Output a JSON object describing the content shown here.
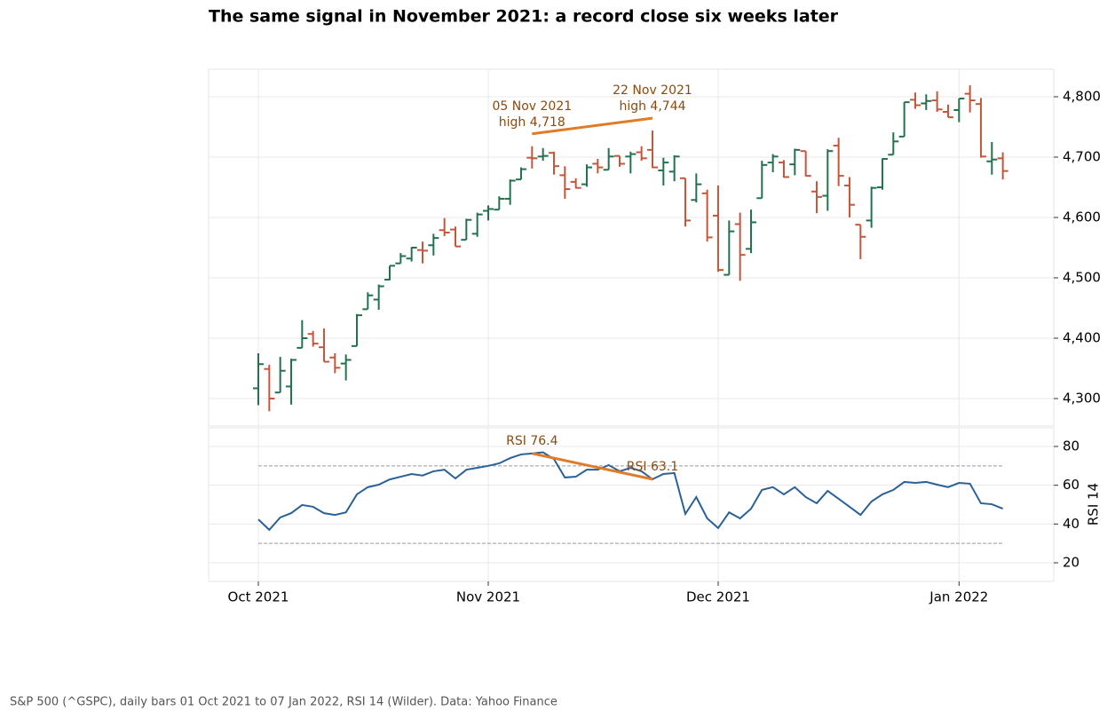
{
  "chart_data": [
    {
      "type": "ohlc",
      "title": "The same signal in November 2021: a record close six weeks later",
      "categories": [
        "Oct 2021",
        null,
        null,
        null,
        null,
        null,
        null,
        null,
        null,
        null,
        null,
        null,
        null,
        null,
        null,
        null,
        null,
        null,
        null,
        null,
        null,
        "Nov 2021",
        null,
        null,
        null,
        null,
        null,
        null,
        null,
        null,
        null,
        null,
        null,
        null,
        null,
        null,
        null,
        null,
        null,
        null,
        null,
        null,
        "Dec 2021",
        null,
        null,
        null,
        null,
        null,
        null,
        null,
        null,
        null,
        null,
        null,
        null,
        null,
        null,
        null,
        null,
        null,
        null,
        null,
        null,
        null,
        "Jan 2022",
        null,
        null,
        null,
        null
      ],
      "open": [
        4317,
        4349,
        4310,
        4320,
        4384,
        4407,
        4385,
        4368,
        4358,
        4387,
        4448,
        4464,
        4497,
        4524,
        4532,
        4546,
        4554,
        4579,
        4580,
        4563,
        4573,
        4611,
        4613,
        4631,
        4663,
        4699,
        4701,
        4707,
        4670,
        4659,
        4655,
        4689,
        4679,
        4702,
        4701,
        4708,
        4712,
        4678,
        4676,
        4665,
        4629,
        4640,
        4603,
        4505,
        4589,
        4548,
        4632,
        4691,
        4691,
        4688,
        4710,
        4643,
        4636,
        4719,
        4653,
        4588,
        4595,
        4650,
        4704,
        4734,
        4795,
        4789,
        4794,
        4775,
        4778,
        4805,
        4788,
        4693,
        4698
      ],
      "high": [
        4375,
        4356,
        4369,
        4366,
        4430,
        4412,
        4416,
        4375,
        4373,
        4440,
        4476,
        4489,
        4520,
        4541,
        4551,
        4560,
        4573,
        4599,
        4585,
        4598,
        4608,
        4620,
        4635,
        4663,
        4683,
        4718,
        4715,
        4709,
        4685,
        4665,
        4688,
        4697,
        4715,
        4702,
        4709,
        4718,
        4744,
        4699,
        4703,
        4665,
        4673,
        4646,
        4653,
        4595,
        4608,
        4613,
        4694,
        4705,
        4695,
        4714,
        4710,
        4660,
        4713,
        4732,
        4667,
        4588,
        4651,
        4698,
        4741,
        4791,
        4807,
        4804,
        4809,
        4787,
        4797,
        4819,
        4798,
        4725,
        4708
      ],
      "low": [
        4289,
        4279,
        4310,
        4290,
        4384,
        4386,
        4361,
        4342,
        4330,
        4387,
        4448,
        4447,
        4496,
        4524,
        4527,
        4524,
        4537,
        4569,
        4552,
        4563,
        4568,
        4595,
        4613,
        4621,
        4663,
        4681,
        4694,
        4671,
        4631,
        4648,
        4651,
        4673,
        4679,
        4684,
        4673,
        4694,
        4682,
        4653,
        4660,
        4585,
        4625,
        4560,
        4510,
        4505,
        4495,
        4541,
        4632,
        4675,
        4666,
        4670,
        4668,
        4607,
        4611,
        4652,
        4600,
        4531,
        4583,
        4646,
        4704,
        4734,
        4780,
        4778,
        4775,
        4766,
        4758,
        4774,
        4699,
        4671,
        4663
      ],
      "close": [
        4357,
        4300,
        4346,
        4364,
        4400,
        4391,
        4361,
        4351,
        4364,
        4438,
        4471,
        4486,
        4520,
        4536,
        4550,
        4545,
        4566,
        4575,
        4552,
        4596,
        4605,
        4614,
        4631,
        4661,
        4680,
        4698,
        4702,
        4685,
        4647,
        4649,
        4683,
        4683,
        4701,
        4689,
        4705,
        4698,
        4683,
        4691,
        4701,
        4595,
        4655,
        4567,
        4513,
        4577,
        4538,
        4592,
        4687,
        4701,
        4667,
        4712,
        4669,
        4634,
        4710,
        4669,
        4621,
        4568,
        4649,
        4697,
        4726,
        4791,
        4786,
        4793,
        4779,
        4766,
        4797,
        4794,
        4701,
        4696,
        4677
      ],
      "up_color": "#22714f",
      "down_color": "#c4573b",
      "ylim": [
        4254.4,
        4845.6
      ],
      "yticks": [
        {
          "value": 4300,
          "label": "4,300"
        },
        {
          "value": 4400,
          "label": "4,400"
        },
        {
          "value": 4500,
          "label": "4,500"
        },
        {
          "value": 4600,
          "label": "4,600"
        },
        {
          "value": 4700,
          "label": "4,700"
        },
        {
          "value": 4800,
          "label": "4,800"
        }
      ],
      "grid": true,
      "annotation_color": "#e07b28",
      "annotations": [
        {
          "lines": [
            "05 Nov 2021",
            "high 4,718"
          ]
        },
        {
          "lines": [
            "22 Nov 2021",
            "high 4,744"
          ]
        }
      ]
    },
    {
      "type": "line",
      "y_label": "RSI 14",
      "series": [
        {
          "color": "#2a6196",
          "values": [
            42.4,
            37,
            43.4,
            45.6,
            49.8,
            48.9,
            45.6,
            44.7,
            46,
            55.3,
            59,
            60.3,
            63,
            64.4,
            65.8,
            65,
            67.2,
            68,
            63.5,
            68,
            69,
            70,
            71.3,
            74,
            75.9,
            76.4,
            77,
            73.5,
            64,
            64.4,
            68,
            68,
            70.4,
            67.2,
            69,
            67.2,
            63.1,
            65.8,
            66.3,
            45.2,
            53.9,
            42.9,
            37.9,
            46,
            42.9,
            47.9,
            57.6,
            59,
            55.3,
            59,
            53.9,
            50.7,
            57.1,
            53,
            48.9,
            44.7,
            51.6,
            55.3,
            57.6,
            61.7,
            61.2,
            61.7,
            60.3,
            59,
            61.2,
            60.8,
            50.7,
            50.2,
            47.9
          ]
        }
      ],
      "ylim": [
        10.4,
        89.6
      ],
      "yticks": [
        20,
        40,
        60,
        80
      ],
      "reference_lines": [
        70,
        30
      ],
      "grid": true,
      "annotations": [
        "RSI 76.4",
        "RSI 63.1"
      ]
    }
  ],
  "footer": "S&P 500 (^GSPC), daily bars 01 Oct 2021 to 07 Jan 2022, RSI 14 (Wilder). Data: Yahoo Finance"
}
